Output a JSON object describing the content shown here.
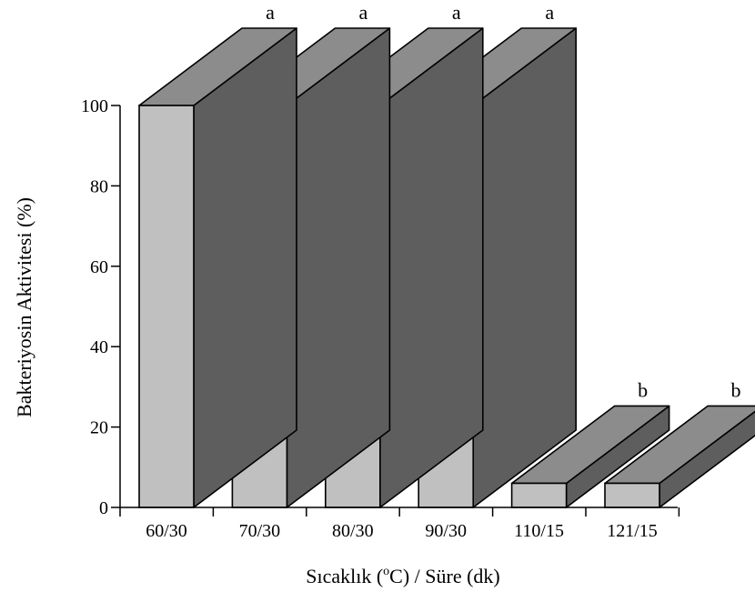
{
  "chart_data": {
    "type": "bar",
    "style": "3d",
    "categories": [
      "60/30",
      "70/30",
      "80/30",
      "90/30",
      "110/15",
      "121/15"
    ],
    "values": [
      100,
      100,
      100,
      100,
      6,
      6
    ],
    "significance_letters": [
      "a",
      "a",
      "a",
      "a",
      "b",
      "b"
    ],
    "ylabel": "Bakteriyosin Aktivitesi (%)",
    "xlabel": {
      "prefix": "Sıcaklık (",
      "superscript": "o",
      "suffix": "C) / Süre (dk)"
    },
    "ylim": [
      0,
      100
    ],
    "yticks": [
      "0",
      "20",
      "40",
      "60",
      "80",
      "100"
    ],
    "grid": false,
    "legend": "none",
    "colors": {
      "front": "#c0c0c0",
      "top": "#8c8c8c",
      "side": "#5e5e5e",
      "outline": "#000000"
    }
  }
}
